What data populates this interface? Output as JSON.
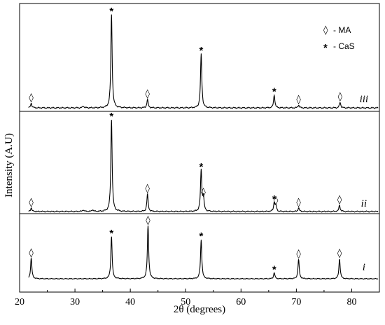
{
  "chart_data": {
    "type": "line",
    "xlabel": "2θ (degrees)",
    "ylabel": "Intensity (A.U)",
    "xlim": [
      20,
      85
    ],
    "x_ticks": [
      20,
      30,
      40,
      50,
      60,
      70,
      80
    ],
    "grid": false,
    "legend": {
      "placement": "top-right",
      "entries": [
        {
          "symbol": "◊",
          "label": "- MA"
        },
        {
          "symbol": "*",
          "label": "- CaS"
        }
      ]
    },
    "series": [
      {
        "name": "iii",
        "peaks": [
          {
            "x": 22.1,
            "h": 0.05,
            "m": "◊"
          },
          {
            "x": 31.5,
            "h": 0.02,
            "m": ""
          },
          {
            "x": 36.6,
            "h": 1.0,
            "m": "*"
          },
          {
            "x": 43.1,
            "h": 0.09,
            "m": "◊"
          },
          {
            "x": 52.8,
            "h": 0.58,
            "m": "*"
          },
          {
            "x": 66.0,
            "h": 0.14,
            "m": "*"
          },
          {
            "x": 70.4,
            "h": 0.03,
            "m": "◊"
          },
          {
            "x": 77.9,
            "h": 0.06,
            "m": "◊"
          }
        ]
      },
      {
        "name": "ii",
        "peaks": [
          {
            "x": 22.1,
            "h": 0.04,
            "m": "◊"
          },
          {
            "x": 31.5,
            "h": 0.02,
            "m": ""
          },
          {
            "x": 33.2,
            "h": 0.02,
            "m": ""
          },
          {
            "x": 36.6,
            "h": 1.0,
            "m": "*"
          },
          {
            "x": 43.1,
            "h": 0.19,
            "m": "◊"
          },
          {
            "x": 52.8,
            "h": 0.45,
            "m": "*"
          },
          {
            "x": 53.2,
            "h": 0.15,
            "m": "◊"
          },
          {
            "x": 66.0,
            "h": 0.1,
            "m": "*"
          },
          {
            "x": 66.3,
            "h": 0.06,
            "m": "◊"
          },
          {
            "x": 70.4,
            "h": 0.04,
            "m": "◊"
          },
          {
            "x": 77.8,
            "h": 0.07,
            "m": "◊"
          }
        ]
      },
      {
        "name": "i",
        "peaks": [
          {
            "x": 22.1,
            "h": 0.34,
            "m": "◊"
          },
          {
            "x": 36.6,
            "h": 0.7,
            "m": "*"
          },
          {
            "x": 43.2,
            "h": 0.88,
            "m": "◊"
          },
          {
            "x": 52.8,
            "h": 0.65,
            "m": "*"
          },
          {
            "x": 66.0,
            "h": 0.1,
            "m": "*"
          },
          {
            "x": 70.4,
            "h": 0.32,
            "m": "◊"
          },
          {
            "x": 77.8,
            "h": 0.33,
            "m": "◊"
          }
        ]
      }
    ]
  }
}
